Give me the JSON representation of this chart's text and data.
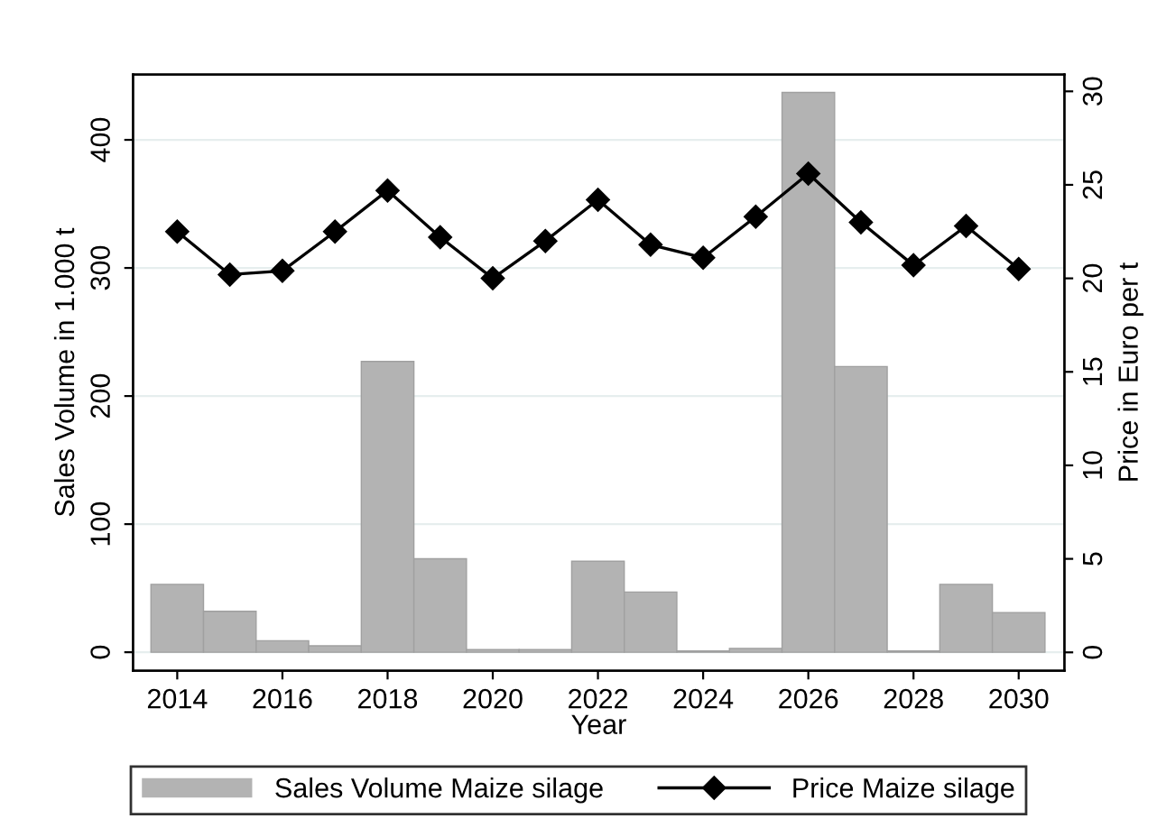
{
  "chart_data": {
    "type": "bar",
    "xlabel": "Year",
    "ylabel": "Sales Volume in 1.000 t",
    "y2label": "Price in Euro per t",
    "x": [
      2014,
      2015,
      2016,
      2017,
      2018,
      2019,
      2020,
      2021,
      2022,
      2023,
      2024,
      2025,
      2026,
      2027,
      2028,
      2029,
      2030
    ],
    "series": [
      {
        "name": "Sales Volume Maize silage",
        "color": "#b3b3b3",
        "values": [
          53,
          32,
          9,
          5,
          227,
          73,
          2,
          2,
          71,
          47,
          1,
          3,
          437,
          223,
          1,
          53,
          31
        ]
      },
      {
        "name": "Price Maize silage",
        "type": "line",
        "axis": "y2",
        "color": "#000000",
        "marker": "diamond",
        "values": [
          22.5,
          20.2,
          20.4,
          22.5,
          24.7,
          22.2,
          20.0,
          22.0,
          24.2,
          21.8,
          21.1,
          23.3,
          25.6,
          23.0,
          20.7,
          22.8,
          20.5
        ]
      }
    ],
    "xlim": [
      2013.16,
      2030.87
    ],
    "xticks": [
      2014,
      2016,
      2018,
      2020,
      2022,
      2024,
      2026,
      2028,
      2030
    ],
    "ylim": [
      -14.4,
      451
    ],
    "yticks": [
      0,
      100,
      200,
      300,
      400
    ],
    "y2lim": [
      -0.98,
      30.9
    ],
    "y2ticks": [
      0,
      5,
      10,
      15,
      20,
      25,
      30
    ],
    "grid": "y",
    "legend": "bottom"
  }
}
